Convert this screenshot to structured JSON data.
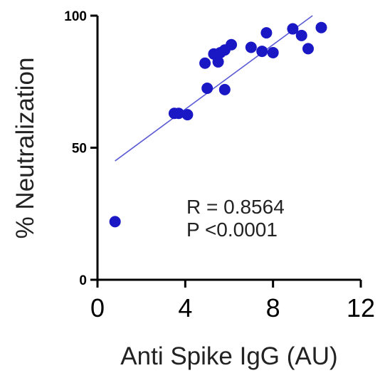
{
  "chart_data": {
    "type": "scatter",
    "title": "",
    "xlabel": "Anti Spike IgG (AU)",
    "ylabel": "% Neutralization",
    "xlim": [
      0,
      12
    ],
    "ylim": [
      0,
      100
    ],
    "xticks": [
      {
        "value": 0,
        "label": "0"
      },
      {
        "value": 4,
        "label": "4"
      },
      {
        "value": 8,
        "label": "8"
      },
      {
        "value": 12,
        "label": "12"
      }
    ],
    "yticks": [
      {
        "value": 0,
        "label": "0"
      },
      {
        "value": 50,
        "label": "50"
      },
      {
        "value": 100,
        "label": "100"
      }
    ],
    "grid": false,
    "marker_color": "#1a17c4",
    "fit_line_color": "#5b5bd6",
    "points": [
      {
        "x": 0.8,
        "y": 22
      },
      {
        "x": 3.5,
        "y": 63
      },
      {
        "x": 3.7,
        "y": 63
      },
      {
        "x": 4.1,
        "y": 62.5
      },
      {
        "x": 4.9,
        "y": 82
      },
      {
        "x": 5.0,
        "y": 72.5
      },
      {
        "x": 5.3,
        "y": 85.5
      },
      {
        "x": 5.5,
        "y": 82.5
      },
      {
        "x": 5.6,
        "y": 86
      },
      {
        "x": 5.8,
        "y": 87
      },
      {
        "x": 5.8,
        "y": 72
      },
      {
        "x": 6.1,
        "y": 89
      },
      {
        "x": 7.0,
        "y": 88
      },
      {
        "x": 7.5,
        "y": 86.5
      },
      {
        "x": 7.7,
        "y": 93.5
      },
      {
        "x": 8.0,
        "y": 86
      },
      {
        "x": 8.9,
        "y": 95
      },
      {
        "x": 9.3,
        "y": 92.5
      },
      {
        "x": 9.6,
        "y": 87.5
      },
      {
        "x": 10.2,
        "y": 95.5
      }
    ],
    "fit_line": {
      "x": [
        0.8,
        9.8
      ],
      "y": [
        45,
        100
      ]
    },
    "annotations": [
      "R = 0.8564",
      "P <0.0001"
    ]
  }
}
